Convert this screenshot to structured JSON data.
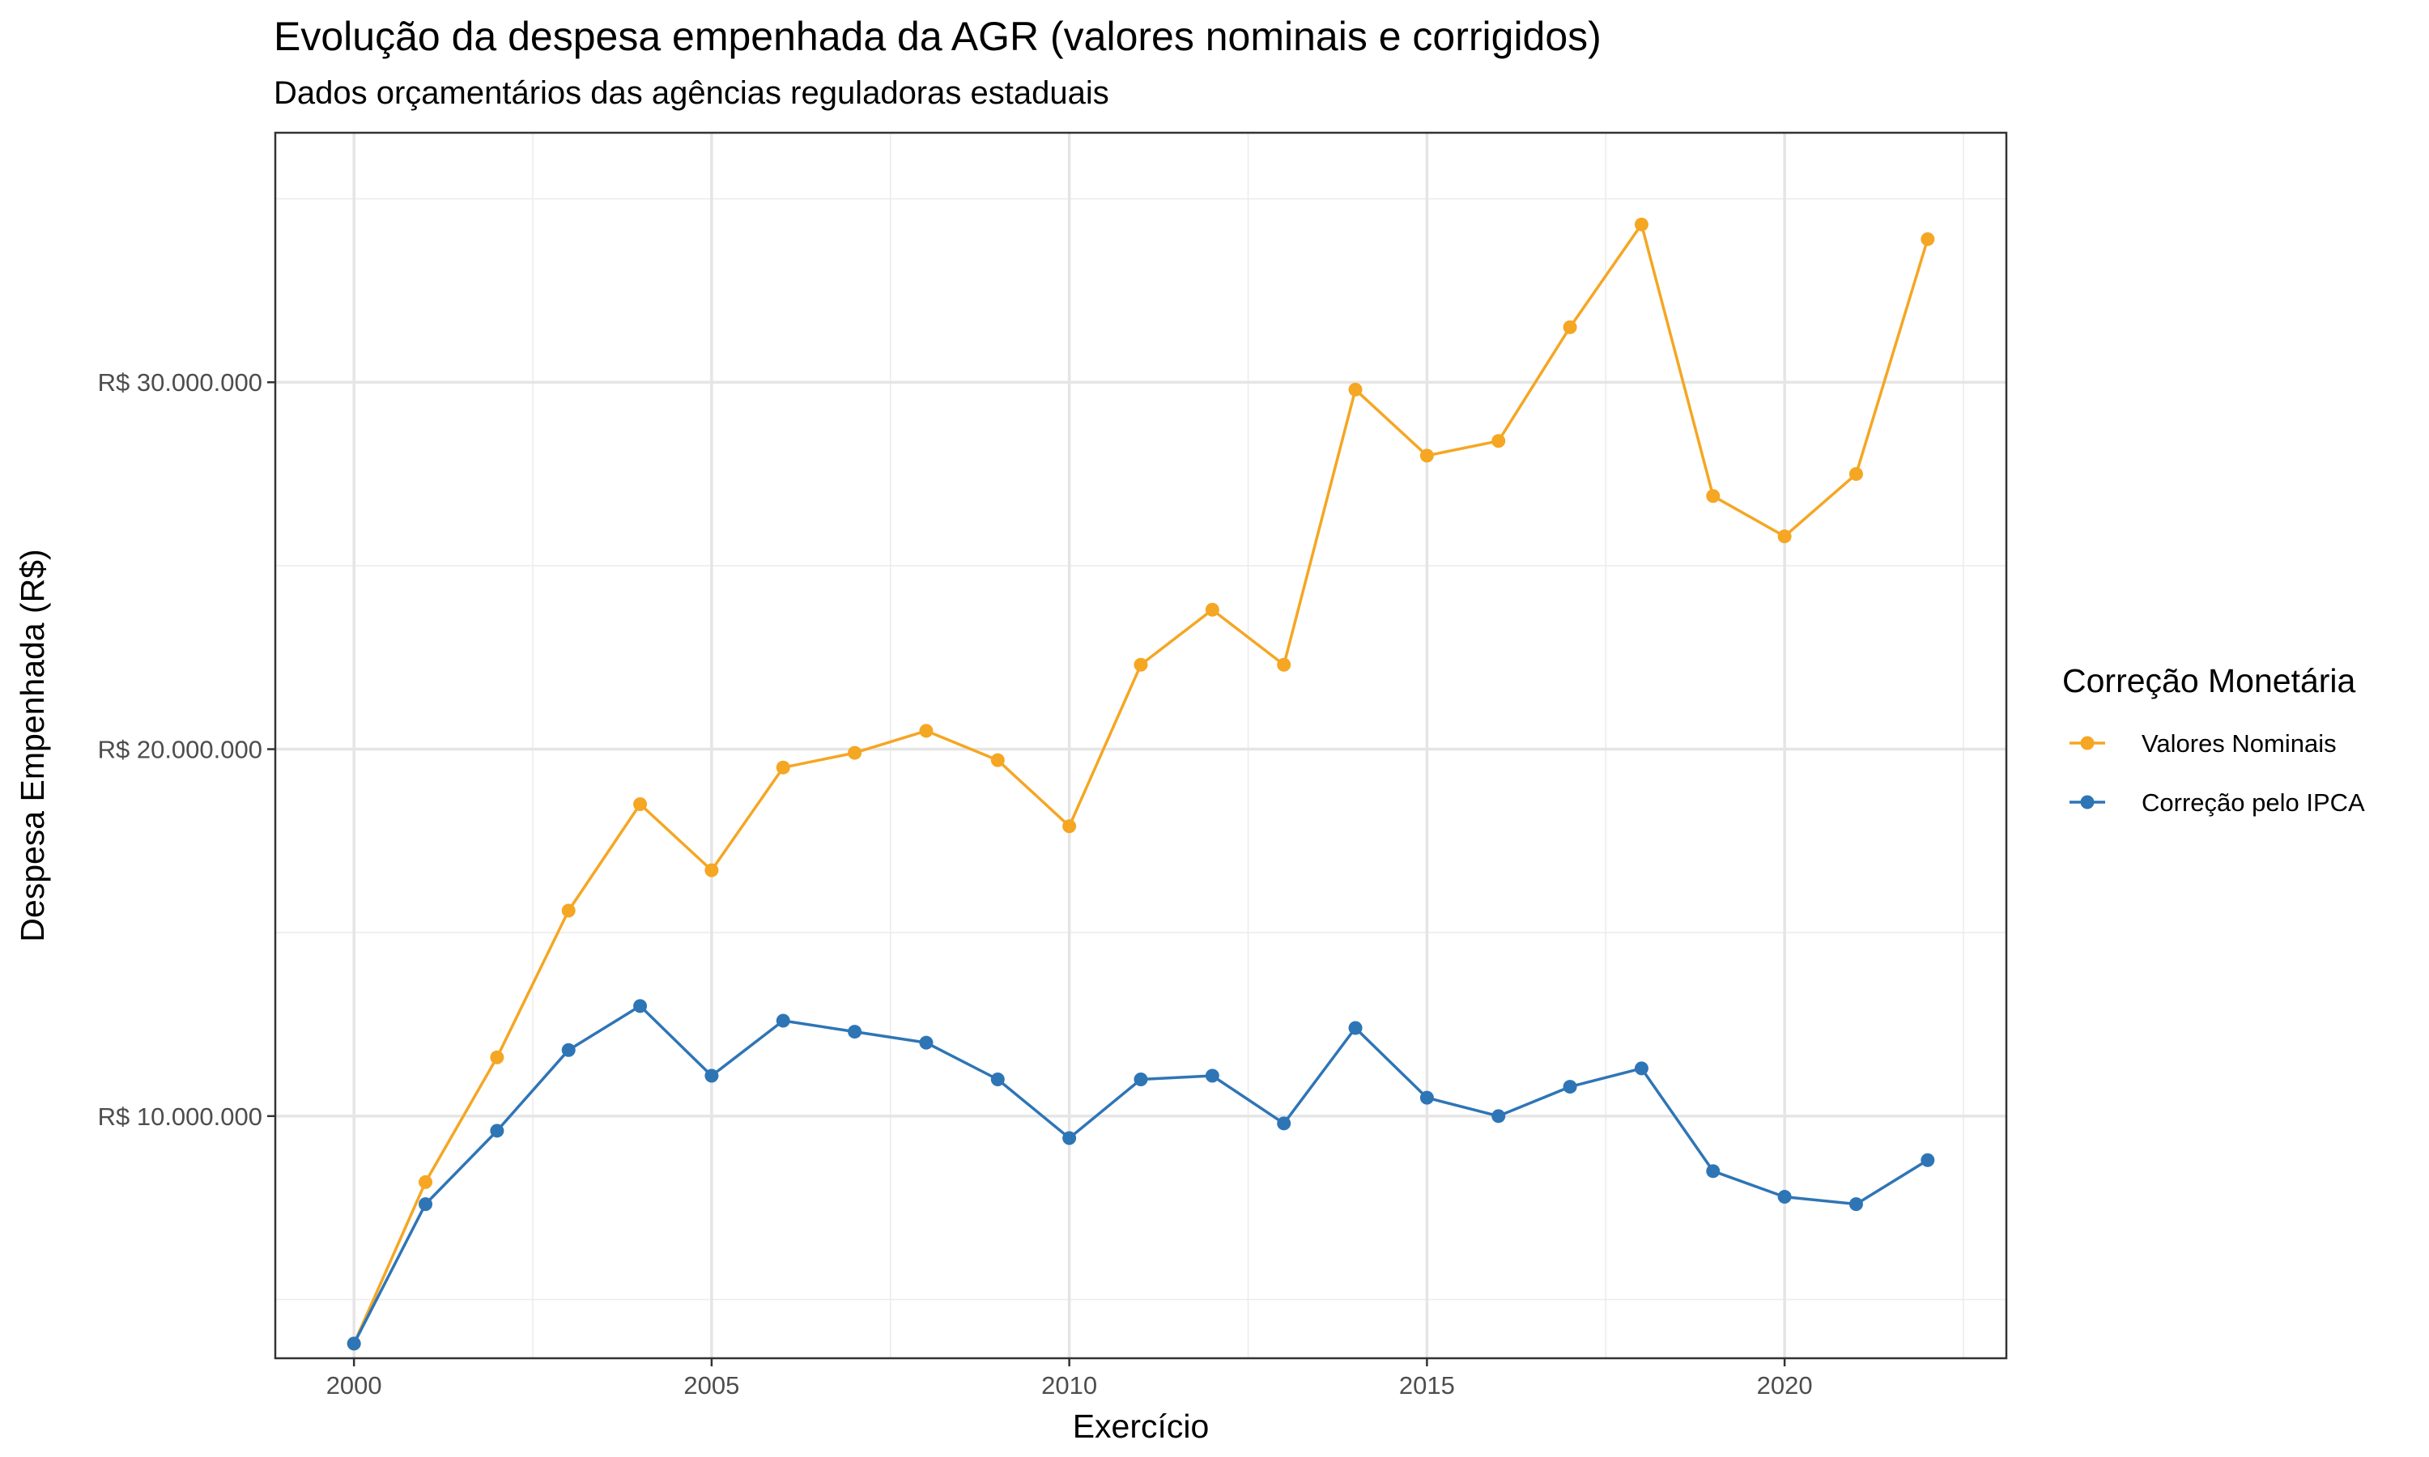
{
  "chart_data": {
    "type": "line",
    "title": "Evolução da despesa empenhada da AGR (valores nominais e corrigidos)",
    "subtitle": "Dados orçamentários das agências reguladoras estaduais",
    "xlabel": "Exercício",
    "ylabel": "Despesa Empenhada (R$)",
    "xlim": [
      1998.9,
      2023.1
    ],
    "ylim": [
      3400000,
      36800000
    ],
    "x_ticks": [
      2000,
      2005,
      2010,
      2015,
      2020
    ],
    "y_ticks": [
      10000000,
      20000000,
      30000000
    ],
    "y_tick_labels": [
      "R$ 10.000.000",
      "R$ 20.000.000",
      "R$ 30.000.000"
    ],
    "grid": true,
    "legend": {
      "title": "Correção Monetária",
      "position": "right"
    },
    "x": [
      2000,
      2001,
      2002,
      2003,
      2004,
      2005,
      2006,
      2007,
      2008,
      2009,
      2010,
      2011,
      2012,
      2013,
      2014,
      2015,
      2016,
      2017,
      2018,
      2019,
      2020,
      2021,
      2022
    ],
    "series": [
      {
        "name": "Valores Nominais",
        "color": "#F5A623",
        "values": [
          3800000,
          8200000,
          11600000,
          15600000,
          18500000,
          16700000,
          19500000,
          19900000,
          20500000,
          19700000,
          17900000,
          22300000,
          23800000,
          22300000,
          29800000,
          28000000,
          28400000,
          31500000,
          34300000,
          26900000,
          25800000,
          27500000,
          33900000
        ]
      },
      {
        "name": "Correção pelo IPCA",
        "color": "#2E75B6",
        "values": [
          3800000,
          7600000,
          9600000,
          11800000,
          13000000,
          11100000,
          12600000,
          12300000,
          12000000,
          11000000,
          9400000,
          11000000,
          11100000,
          9800000,
          12400000,
          10500000,
          10000000,
          10800000,
          11300000,
          8500000,
          7800000,
          7600000,
          8800000
        ]
      }
    ]
  }
}
